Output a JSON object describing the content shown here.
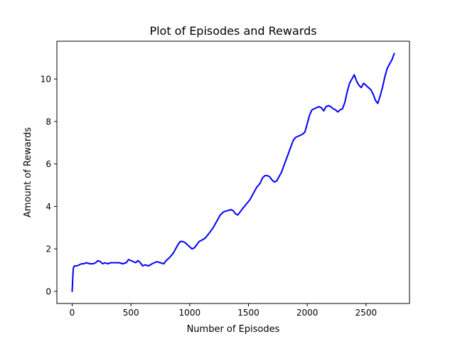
{
  "chart_data": {
    "type": "line",
    "title": "Plot of Episodes and Rewards",
    "xlabel": "Number of Episodes",
    "ylabel": "Amount of Rewards",
    "xlim": [
      -130,
      2870
    ],
    "ylim": [
      -0.57,
      11.78
    ],
    "x_ticks": [
      0,
      500,
      1000,
      1500,
      2000,
      2500
    ],
    "y_ticks": [
      0,
      2,
      4,
      6,
      8,
      10
    ],
    "grid": false,
    "line_color": "#0000ff",
    "series": [
      {
        "x": [
          0,
          5,
          10,
          20,
          40,
          60,
          80,
          100,
          120,
          150,
          180,
          200,
          220,
          240,
          260,
          280,
          300,
          330,
          360,
          400,
          430,
          460,
          480,
          500,
          520,
          540,
          560,
          580,
          600,
          620,
          650,
          680,
          700,
          720,
          750,
          780,
          800,
          830,
          860,
          880,
          900,
          920,
          940,
          960,
          980,
          1000,
          1020,
          1040,
          1060,
          1080,
          1100,
          1130,
          1160,
          1200,
          1230,
          1260,
          1290,
          1320,
          1350,
          1370,
          1390,
          1410,
          1430,
          1450,
          1480,
          1510,
          1540,
          1570,
          1600,
          1620,
          1640,
          1660,
          1680,
          1700,
          1720,
          1740,
          1760,
          1780,
          1800,
          1820,
          1840,
          1860,
          1880,
          1900,
          1920,
          1940,
          1960,
          1980,
          2000,
          2020,
          2040,
          2060,
          2080,
          2100,
          2120,
          2140,
          2160,
          2180,
          2200,
          2220,
          2240,
          2260,
          2280,
          2300,
          2320,
          2340,
          2360,
          2380,
          2400,
          2420,
          2440,
          2460,
          2480,
          2500,
          2520,
          2540,
          2560,
          2580,
          2600,
          2620,
          2640,
          2660,
          2680,
          2700,
          2720,
          2740
        ],
        "values": [
          0.0,
          0.6,
          1.1,
          1.2,
          1.2,
          1.25,
          1.3,
          1.3,
          1.35,
          1.3,
          1.3,
          1.35,
          1.45,
          1.4,
          1.3,
          1.35,
          1.3,
          1.35,
          1.35,
          1.35,
          1.3,
          1.35,
          1.5,
          1.45,
          1.4,
          1.35,
          1.45,
          1.35,
          1.2,
          1.25,
          1.2,
          1.3,
          1.35,
          1.4,
          1.35,
          1.3,
          1.45,
          1.6,
          1.8,
          2.0,
          2.2,
          2.35,
          2.35,
          2.3,
          2.2,
          2.1,
          2.0,
          2.05,
          2.2,
          2.35,
          2.4,
          2.5,
          2.7,
          3.0,
          3.3,
          3.6,
          3.75,
          3.8,
          3.85,
          3.8,
          3.65,
          3.6,
          3.75,
          3.9,
          4.1,
          4.3,
          4.6,
          4.9,
          5.1,
          5.35,
          5.45,
          5.45,
          5.4,
          5.25,
          5.15,
          5.2,
          5.4,
          5.6,
          5.9,
          6.2,
          6.5,
          6.8,
          7.1,
          7.25,
          7.3,
          7.35,
          7.4,
          7.5,
          7.9,
          8.3,
          8.55,
          8.6,
          8.65,
          8.7,
          8.65,
          8.5,
          8.7,
          8.75,
          8.7,
          8.6,
          8.55,
          8.45,
          8.55,
          8.6,
          8.9,
          9.4,
          9.8,
          10.0,
          10.2,
          9.9,
          9.7,
          9.6,
          9.8,
          9.7,
          9.6,
          9.5,
          9.3,
          9.0,
          8.85,
          9.2,
          9.6,
          10.1,
          10.5,
          10.7,
          10.9,
          11.2
        ]
      }
    ]
  }
}
